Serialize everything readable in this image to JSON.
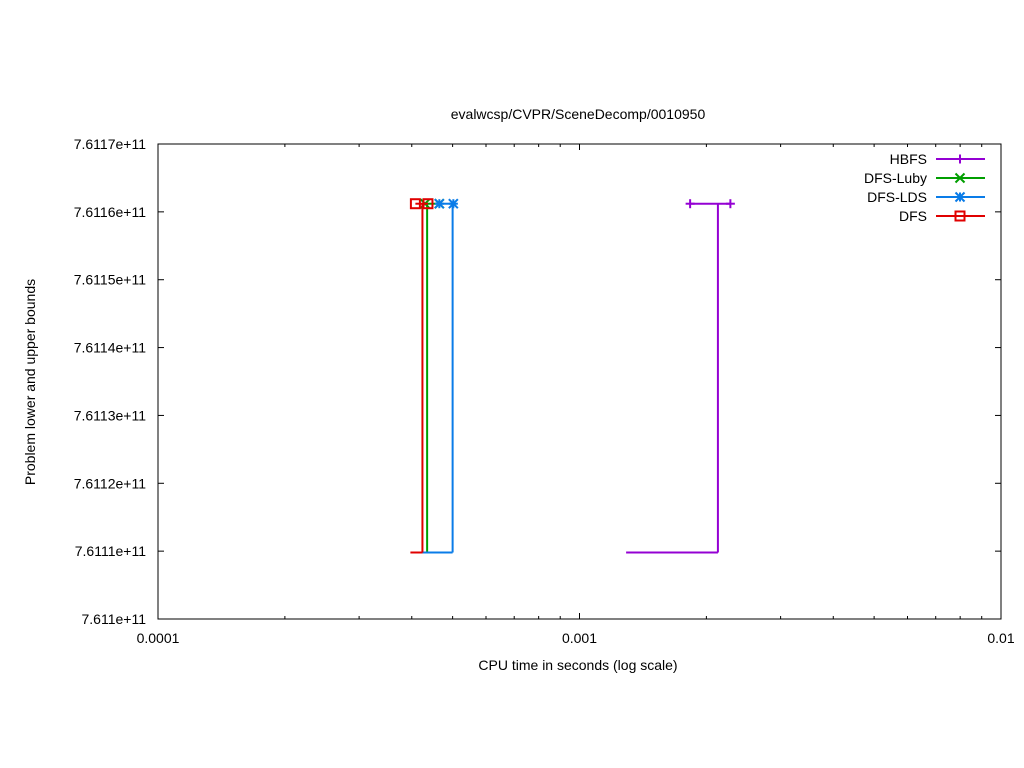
{
  "chart_data": {
    "type": "line",
    "title": "evalwcsp/CVPR/SceneDecomp/0010950",
    "xlabel": "CPU time in seconds (log scale)",
    "ylabel": "Problem lower and upper bounds",
    "x_scale": "log",
    "xlim": [
      0.0001,
      0.01
    ],
    "ylim": [
      761100000000,
      761170000000
    ],
    "x_ticks": [
      {
        "value": 0.0001,
        "label": "0.0001"
      },
      {
        "value": 0.001,
        "label": "0.001"
      },
      {
        "value": 0.01,
        "label": "0.01"
      }
    ],
    "y_ticks": [
      {
        "value": 761100000000,
        "label": "7.611e+11"
      },
      {
        "value": 761110000000,
        "label": "7.6111e+11"
      },
      {
        "value": 761120000000,
        "label": "7.6112e+11"
      },
      {
        "value": 761130000000,
        "label": "7.6113e+11"
      },
      {
        "value": 761140000000,
        "label": "7.6114e+11"
      },
      {
        "value": 761150000000,
        "label": "7.6115e+11"
      },
      {
        "value": 761160000000,
        "label": "7.6116e+11"
      },
      {
        "value": 761170000000,
        "label": "7.6117e+11"
      }
    ],
    "grid": false,
    "legend_position": "top-right",
    "series": [
      {
        "name": "HBFS",
        "color": "#9400d3",
        "marker": "plus",
        "lower_bound": [
          [
            0.00129,
            761109800000
          ],
          [
            0.00213,
            761109800000
          ]
        ],
        "upper_bound": [
          [
            0.00183,
            761161200000
          ],
          [
            0.00228,
            761161200000
          ]
        ],
        "connector": [
          [
            0.00213,
            761109800000
          ],
          [
            0.00213,
            761161200000
          ]
        ]
      },
      {
        "name": "DFS-Luby",
        "color": "#009e00",
        "marker": "x",
        "lower_bound": [
          [
            0.00042,
            761109800000
          ],
          [
            0.000435,
            761109800000
          ]
        ],
        "upper_bound": [
          [
            0.00043,
            761161200000
          ],
          [
            0.000465,
            761161200000
          ]
        ],
        "connector": [
          [
            0.000435,
            761109800000
          ],
          [
            0.000435,
            761161200000
          ]
        ]
      },
      {
        "name": "DFS-LDS",
        "color": "#0a7ce8",
        "marker": "star",
        "lower_bound": [
          [
            0.00042,
            761109800000
          ],
          [
            0.0005,
            761109800000
          ]
        ],
        "upper_bound": [
          [
            0.000465,
            761161200000
          ],
          [
            0.000502,
            761161200000
          ]
        ],
        "connector": [
          [
            0.0005,
            761109800000
          ],
          [
            0.0005,
            761161200000
          ]
        ]
      },
      {
        "name": "DFS",
        "color": "#e00000",
        "marker": "square",
        "lower_bound": [
          [
            0.000397,
            761109800000
          ],
          [
            0.000424,
            761109800000
          ]
        ],
        "upper_bound": [
          [
            0.000408,
            761161200000
          ],
          [
            0.000437,
            761161200000
          ]
        ],
        "connector": [
          [
            0.000424,
            761109800000
          ],
          [
            0.000424,
            761161200000
          ]
        ]
      }
    ]
  }
}
